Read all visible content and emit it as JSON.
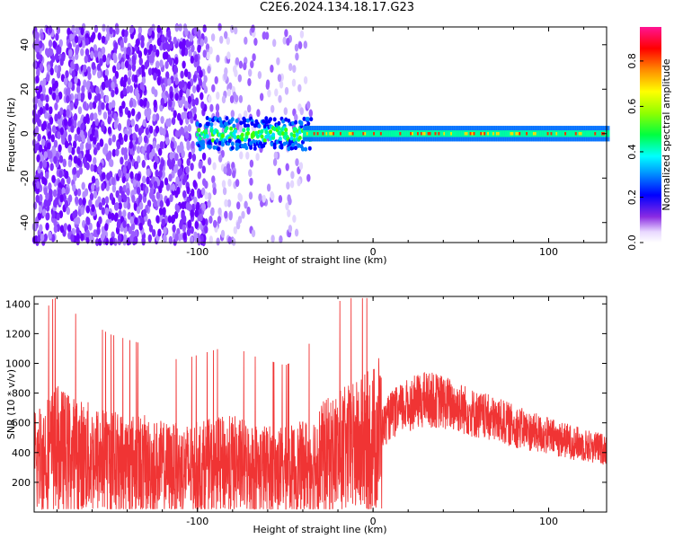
{
  "title": "C2E6.2024.134.18.17.G23",
  "colors": {
    "snr": "#f03434",
    "frame": "#000000"
  },
  "chart_data": [
    {
      "type": "heatmap",
      "xlabel": "Height of straight line (km)",
      "ylabel": "Frequency (Hz)",
      "xlim": [
        -193,
        133
      ],
      "ylim": [
        -49,
        48
      ],
      "xticks": [
        -100,
        0,
        100
      ],
      "yticks": [
        -40,
        -20,
        0,
        20,
        40
      ],
      "colorbar": {
        "label": "Normalized spectral amplitude",
        "range": [
          0.0,
          0.95
        ],
        "ticks": [
          0.0,
          0.2,
          0.4,
          0.6,
          0.8
        ]
      },
      "grid": false
    },
    {
      "type": "line",
      "xlabel": "Height of straight line (km)",
      "ylabel": "SNR (10 * v/v)",
      "xlim": [
        -193,
        133
      ],
      "ylim": [
        0,
        1450
      ],
      "xticks": [
        -100,
        0,
        100
      ],
      "yticks": [
        200,
        400,
        600,
        800,
        1000,
        1200,
        1400
      ],
      "grid": false,
      "series": [
        {
          "x": [
            -193,
            -180,
            -170,
            -160,
            -150,
            -140,
            -130,
            -120,
            -110,
            -100,
            -90,
            -80,
            -70,
            -60,
            -50,
            -40,
            -35,
            -30,
            -20,
            -10,
            0,
            5,
            10,
            20,
            30,
            40,
            50,
            60,
            70,
            80,
            90,
            100,
            110,
            120,
            133
          ],
          "values": [
            350,
            420,
            380,
            360,
            340,
            330,
            320,
            300,
            290,
            300,
            310,
            320,
            300,
            290,
            280,
            300,
            330,
            360,
            400,
            430,
            480,
            560,
            650,
            720,
            760,
            740,
            700,
            650,
            620,
            580,
            540,
            510,
            480,
            450,
            420
          ]
        }
      ]
    }
  ]
}
